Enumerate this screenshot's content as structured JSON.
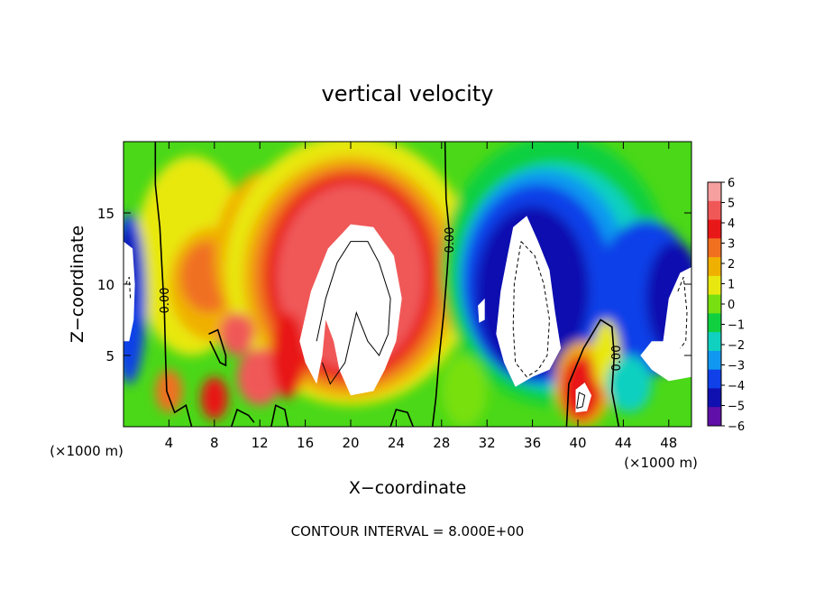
{
  "chart_data": {
    "type": "heatmap",
    "title": "vertical velocity",
    "xlabel": "X−coordinate",
    "ylabel": "Z−coordinate",
    "x_unit_left": "(×1000 m)",
    "x_unit_right": "(×1000 m)",
    "xlim": [
      0,
      50
    ],
    "ylim": [
      0,
      20
    ],
    "x_ticks": [
      4,
      8,
      12,
      16,
      20,
      24,
      28,
      32,
      36,
      40,
      44,
      48
    ],
    "y_ticks": [
      5,
      10,
      15
    ],
    "x_tick_labels": [
      "4",
      "8",
      "12",
      "16",
      "20",
      "24",
      "28",
      "32",
      "36",
      "40",
      "44",
      "48"
    ],
    "y_tick_labels": [
      "5",
      "10",
      "15"
    ],
    "colorbar": {
      "levels": [
        6,
        5,
        4,
        3,
        2,
        1,
        0,
        -1,
        -2,
        -3,
        -4,
        -5,
        -6
      ],
      "labels": [
        "6",
        "5",
        "4",
        "3",
        "2",
        "1",
        "0",
        "−1",
        "−2",
        "−3",
        "−4",
        "−5",
        "−6"
      ],
      "colors": [
        "#f7a0a0",
        "#f05858",
        "#e81818",
        "#f07020",
        "#f0b000",
        "#e8e810",
        "#78e010",
        "#10d040",
        "#10d0c0",
        "#1098f0",
        "#1040e8",
        "#1010b0",
        "#6010a8"
      ],
      "above_range_color": "#ffffff"
    },
    "contour_labels": [
      "0.00",
      "0.00",
      "0.00"
    ],
    "contour_interval_text": "CONTOUR INTERVAL = 8.000E+00",
    "features": [
      {
        "x": 20,
        "z": 11,
        "w_sign": "updraft",
        "strength": "strong"
      },
      {
        "x": 35.5,
        "z": 9,
        "w_sign": "downdraft",
        "strength": "strong"
      },
      {
        "x": 40.3,
        "z": 2.5,
        "w_sign": "updraft",
        "strength": "strong"
      },
      {
        "x": 49.5,
        "z": 9,
        "w_sign": "downdraft",
        "strength": "strong"
      },
      {
        "x": 0.5,
        "z": 10.5,
        "w_sign": "downdraft",
        "strength": "strong"
      }
    ]
  }
}
